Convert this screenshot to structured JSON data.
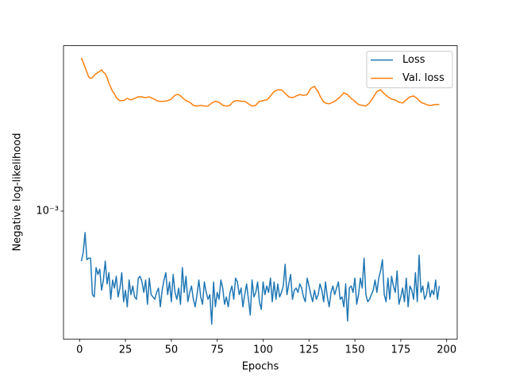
{
  "chart_data": {
    "type": "line",
    "xlabel": "Epochs",
    "ylabel": "Negative log-likelihood",
    "x": [
      1,
      2,
      3,
      4,
      5,
      6,
      7,
      8,
      9,
      10,
      11,
      12,
      13,
      14,
      15,
      16,
      17,
      18,
      19,
      20,
      21,
      22,
      23,
      24,
      25,
      26,
      27,
      28,
      29,
      30,
      31,
      32,
      33,
      34,
      35,
      36,
      37,
      38,
      39,
      40,
      41,
      42,
      43,
      44,
      45,
      46,
      47,
      48,
      49,
      50,
      51,
      52,
      53,
      54,
      55,
      56,
      57,
      58,
      59,
      60,
      61,
      62,
      63,
      64,
      65,
      66,
      67,
      68,
      69,
      70,
      71,
      72,
      73,
      74,
      75,
      76,
      77,
      78,
      79,
      80,
      81,
      82,
      83,
      84,
      85,
      86,
      87,
      88,
      89,
      90,
      91,
      92,
      93,
      94,
      95,
      96,
      97,
      98,
      99,
      100,
      101,
      102,
      103,
      104,
      105,
      106,
      107,
      108,
      109,
      110,
      111,
      112,
      113,
      114,
      115,
      116,
      117,
      118,
      119,
      120,
      121,
      122,
      123,
      124,
      125,
      126,
      127,
      128,
      129,
      130,
      131,
      132,
      133,
      134,
      135,
      136,
      137,
      138,
      139,
      140,
      141,
      142,
      143,
      144,
      145,
      146,
      147,
      148,
      149,
      150,
      151,
      152,
      153,
      154,
      155,
      156,
      157,
      158,
      159,
      160,
      161,
      162,
      163,
      164,
      165,
      166,
      167,
      168,
      169,
      170,
      171,
      172,
      173,
      174,
      175,
      176,
      177,
      178,
      179,
      180,
      181,
      182,
      183,
      184,
      185,
      186,
      187,
      188,
      189,
      190,
      191,
      192,
      193,
      194,
      195,
      196
    ],
    "series": [
      {
        "name": "Loss",
        "color": "#1f77b4",
        "values": [
          0.00056,
          0.00062,
          0.00078,
          0.00057,
          0.00058,
          0.00058,
          0.00038,
          0.00037,
          0.00052,
          0.00048,
          0.00051,
          0.0004,
          0.00045,
          0.00056,
          0.00043,
          0.00049,
          0.00036,
          0.00045,
          0.00041,
          0.00047,
          0.00037,
          0.00041,
          0.00049,
          0.00035,
          0.0004,
          0.00033,
          0.00045,
          0.00038,
          0.00042,
          0.00037,
          0.00036,
          0.00046,
          0.00047,
          0.00044,
          0.00039,
          0.00045,
          0.00034,
          0.00046,
          0.00038,
          0.00037,
          0.00036,
          0.00039,
          0.00041,
          0.00033,
          0.0004,
          0.00045,
          0.00049,
          0.00038,
          0.00044,
          0.00035,
          0.00048,
          0.00039,
          0.00036,
          0.00041,
          0.00034,
          0.00052,
          0.00039,
          0.00047,
          0.00035,
          0.00039,
          0.00042,
          0.00036,
          0.00033,
          0.00038,
          0.00045,
          0.00037,
          0.00034,
          0.00044,
          0.00039,
          0.00036,
          0.00038,
          0.00027,
          0.00044,
          0.00033,
          0.00039,
          0.00036,
          0.00045,
          0.00041,
          0.00034,
          0.00037,
          0.00033,
          0.00039,
          0.00042,
          0.00036,
          0.00046,
          0.00044,
          0.00038,
          0.00041,
          0.00033,
          0.00038,
          0.00043,
          0.00036,
          0.0003,
          0.00045,
          0.00037,
          0.00039,
          0.00044,
          0.00035,
          0.00032,
          0.00044,
          0.00038,
          0.00042,
          0.00039,
          0.00046,
          0.00035,
          0.00044,
          0.00036,
          0.00043,
          0.00037,
          0.00039,
          0.00042,
          0.00054,
          0.00038,
          0.00043,
          0.00048,
          0.00036,
          0.0004,
          0.00041,
          0.00039,
          0.00043,
          0.00041,
          0.00037,
          0.00035,
          0.00046,
          0.00042,
          0.00038,
          0.00035,
          0.0004,
          0.00036,
          0.00038,
          0.00043,
          0.0004,
          0.00035,
          0.00044,
          0.00037,
          0.00033,
          0.00039,
          0.00042,
          0.00038,
          0.00041,
          0.00044,
          0.00036,
          0.00037,
          0.00033,
          0.00043,
          0.00028,
          0.00041,
          0.00042,
          0.00039,
          0.00046,
          0.00034,
          0.00038,
          0.00046,
          0.00041,
          0.00058,
          0.00038,
          0.00035,
          0.00036,
          0.00038,
          0.0004,
          0.00045,
          0.00039,
          0.00046,
          0.0005,
          0.00057,
          0.00038,
          0.00035,
          0.00046,
          0.00036,
          0.00047,
          0.00042,
          0.00039,
          0.0005,
          0.00034,
          0.00037,
          0.00041,
          0.00035,
          0.00046,
          0.00033,
          0.00042,
          0.0004,
          0.00036,
          0.00049,
          0.00035,
          0.0006,
          0.00039,
          0.00042,
          0.00036,
          0.00038,
          0.00044,
          0.00037,
          0.0004,
          0.00038,
          0.00045,
          0.00036,
          0.00042
        ]
      },
      {
        "name": "Val. loss",
        "color": "#ff7f0e",
        "values": [
          0.0059,
          0.0056,
          0.0053,
          0.005,
          0.00474,
          0.00465,
          0.0047,
          0.00482,
          0.00491,
          0.005,
          0.00505,
          0.00515,
          0.005,
          0.00491,
          0.0047,
          0.0044,
          0.0042,
          0.004,
          0.0039,
          0.00373,
          0.00365,
          0.0036,
          0.0036,
          0.0036,
          0.00365,
          0.00369,
          0.00366,
          0.00363,
          0.00366,
          0.00369,
          0.00373,
          0.00376,
          0.00376,
          0.00376,
          0.00374,
          0.00373,
          0.00374,
          0.00376,
          0.00372,
          0.00369,
          0.00365,
          0.0036,
          0.00358,
          0.00357,
          0.00357,
          0.00357,
          0.00358,
          0.0036,
          0.00363,
          0.00366,
          0.00375,
          0.00383,
          0.00386,
          0.00386,
          0.0038,
          0.00373,
          0.00366,
          0.0036,
          0.00357,
          0.00353,
          0.00347,
          0.00341,
          0.00339,
          0.00338,
          0.00339,
          0.00341,
          0.00339,
          0.00338,
          0.00338,
          0.00338,
          0.00344,
          0.0035,
          0.00354,
          0.00357,
          0.00355,
          0.00353,
          0.00347,
          0.00341,
          0.00339,
          0.00338,
          0.00339,
          0.00341,
          0.0035,
          0.00357,
          0.00359,
          0.0036,
          0.00359,
          0.00357,
          0.00357,
          0.00357,
          0.00352,
          0.00347,
          0.00342,
          0.00338,
          0.00339,
          0.00341,
          0.0035,
          0.00357,
          0.00358,
          0.0036,
          0.00362,
          0.00363,
          0.0037,
          0.0038,
          0.0039,
          0.004,
          0.00404,
          0.00408,
          0.00408,
          0.00408,
          0.004,
          0.00391,
          0.00384,
          0.00376,
          0.00374,
          0.00373,
          0.00375,
          0.0038,
          0.00383,
          0.00386,
          0.00384,
          0.00383,
          0.00384,
          0.00386,
          0.004,
          0.00415,
          0.0042,
          0.00424,
          0.0041,
          0.004,
          0.0038,
          0.00366,
          0.00355,
          0.0035,
          0.00348,
          0.00347,
          0.0035,
          0.00353,
          0.00358,
          0.00363,
          0.0037,
          0.00376,
          0.00385,
          0.00394,
          0.0039,
          0.00386,
          0.00377,
          0.00369,
          0.00363,
          0.00357,
          0.0035,
          0.00344,
          0.00342,
          0.00341,
          0.0034,
          0.00338,
          0.00344,
          0.0035,
          0.00363,
          0.00373,
          0.00387,
          0.004,
          0.00405,
          0.00408,
          0.00398,
          0.0039,
          0.00383,
          0.00376,
          0.00371,
          0.00366,
          0.00364,
          0.00363,
          0.00358,
          0.00353,
          0.00352,
          0.0035,
          0.00357,
          0.00363,
          0.0037,
          0.00376,
          0.00378,
          0.0038,
          0.00374,
          0.00369,
          0.0036,
          0.00353,
          0.0035,
          0.00347,
          0.00344,
          0.00341,
          0.00341,
          0.00341,
          0.00343,
          0.00344,
          0.00344,
          0.00344
        ]
      }
    ],
    "xlim": [
      -8.75,
      205.75
    ],
    "xticks": [
      0,
      25,
      50,
      75,
      100,
      125,
      150,
      175,
      200
    ],
    "ylim": [
      0.000227,
      0.0068
    ],
    "yticks": [
      {
        "value": 0.001,
        "label": "10⁻³"
      }
    ],
    "yscale": "log",
    "legend": "upper right"
  }
}
